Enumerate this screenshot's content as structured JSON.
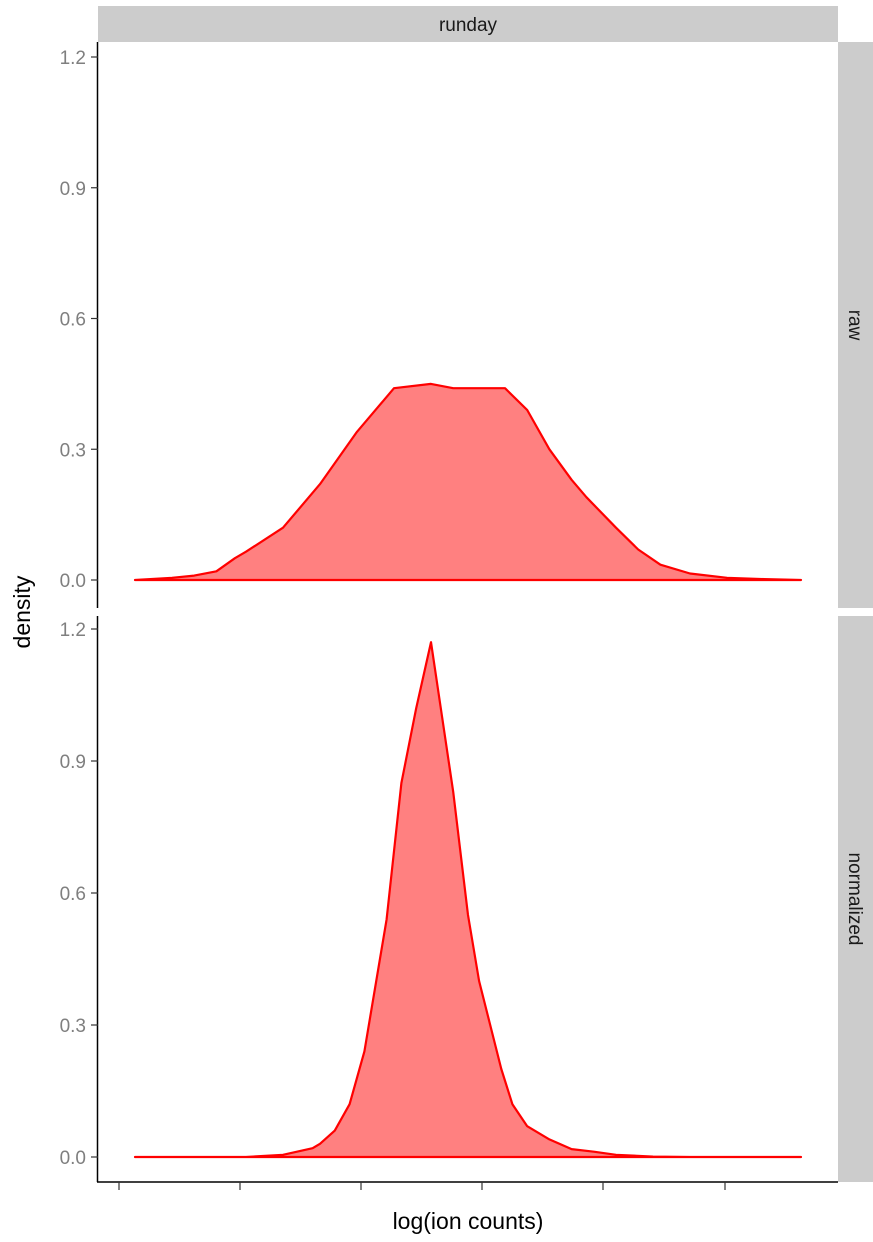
{
  "chart_data": {
    "type": "area",
    "title": "",
    "xlabel": "log(ion counts)",
    "ylabel": "density",
    "column_strip": "runday",
    "ylim": [
      0,
      1.2
    ],
    "y_ticks": [
      "0.0",
      "0.3",
      "0.6",
      "0.9",
      "1.2"
    ],
    "x_ticks_count": 6,
    "fill_color": "#ff8080",
    "line_color": "#ff0000",
    "strip_color": "#cccccc",
    "panels": [
      {
        "name": "raw",
        "x": [
          0.05,
          0.1,
          0.13,
          0.16,
          0.185,
          0.2,
          0.25,
          0.3,
          0.35,
          0.4,
          0.45,
          0.48,
          0.52,
          0.55,
          0.58,
          0.61,
          0.64,
          0.66,
          0.7,
          0.73,
          0.76,
          0.8,
          0.85,
          0.9,
          0.95
        ],
        "y": [
          0.0,
          0.005,
          0.01,
          0.02,
          0.05,
          0.065,
          0.12,
          0.22,
          0.34,
          0.44,
          0.45,
          0.44,
          0.44,
          0.44,
          0.39,
          0.3,
          0.23,
          0.19,
          0.12,
          0.07,
          0.035,
          0.015,
          0.005,
          0.002,
          0.0
        ]
      },
      {
        "name": "normalized",
        "x": [
          0.05,
          0.15,
          0.2,
          0.25,
          0.29,
          0.3,
          0.32,
          0.34,
          0.36,
          0.39,
          0.41,
          0.43,
          0.45,
          0.465,
          0.48,
          0.5,
          0.515,
          0.53,
          0.545,
          0.56,
          0.58,
          0.61,
          0.64,
          0.67,
          0.7,
          0.75,
          0.8,
          0.95
        ],
        "y": [
          0.0,
          0.0,
          0.0,
          0.005,
          0.02,
          0.03,
          0.06,
          0.12,
          0.24,
          0.54,
          0.85,
          1.02,
          1.17,
          1.0,
          0.83,
          0.55,
          0.4,
          0.3,
          0.2,
          0.12,
          0.07,
          0.04,
          0.018,
          0.012,
          0.005,
          0.001,
          0.0,
          0.0
        ]
      }
    ]
  }
}
